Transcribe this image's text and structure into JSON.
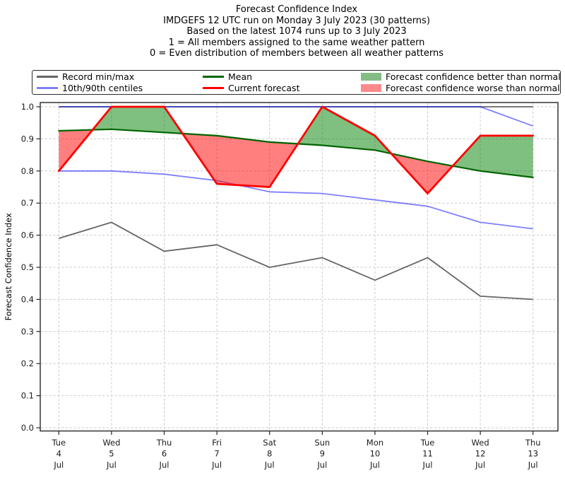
{
  "title_lines": [
    "Forecast Confidence Index",
    "IMDGEFS 12 UTC run on Monday 3 July 2023 (30 patterns)",
    "Based on the latest 1074 runs up to 3 July 2023",
    "1 = All members assigned to the same weather pattern",
    "0 = Even distribution of members between all weather patterns"
  ],
  "legend": {
    "items": [
      {
        "label": "Record min/max",
        "kind": "line",
        "color": "#666666"
      },
      {
        "label": "10th/90th centiles",
        "kind": "line",
        "color": "#8080fa"
      },
      {
        "label": "Mean",
        "kind": "line",
        "color": "#006400"
      },
      {
        "label": "Current forecast",
        "kind": "line",
        "color": "#ff0000"
      },
      {
        "label": "Forecast confidence better than normal",
        "kind": "patch",
        "color": "#83bd83"
      },
      {
        "label": "Forecast confidence worse than normal",
        "kind": "patch",
        "color": "#fb8a8a"
      }
    ]
  },
  "chart_data": {
    "type": "line",
    "title": "Forecast Confidence Index",
    "ylabel": "Forecast Confidence Index",
    "ylim": [
      0.0,
      1.0
    ],
    "yticks": [
      0.0,
      0.1,
      0.2,
      0.3,
      0.4,
      0.5,
      0.6,
      0.7,
      0.8,
      0.9,
      1.0
    ],
    "grid": true,
    "legend_position": "top",
    "x_tick_labels": [
      [
        "Tue",
        "4",
        "Jul"
      ],
      [
        "Wed",
        "5",
        "Jul"
      ],
      [
        "Thu",
        "6",
        "Jul"
      ],
      [
        "Fri",
        "7",
        "Jul"
      ],
      [
        "Sat",
        "8",
        "Jul"
      ],
      [
        "Sun",
        "9",
        "Jul"
      ],
      [
        "Mon",
        "10",
        "Jul"
      ],
      [
        "Tue",
        "11",
        "Jul"
      ],
      [
        "Wed",
        "12",
        "Jul"
      ],
      [
        "Thu",
        "13",
        "Jul"
      ]
    ],
    "series": [
      {
        "key": "record_max",
        "name": "Record max",
        "color": "#666666",
        "width": 1.8,
        "opacity": 1,
        "values": [
          1.0,
          1.0,
          1.0,
          1.0,
          1.0,
          1.0,
          1.0,
          1.0,
          1.0,
          1.0
        ]
      },
      {
        "key": "record_min",
        "name": "Record min",
        "color": "#666666",
        "width": 1.8,
        "opacity": 1,
        "values": [
          0.59,
          0.64,
          0.55,
          0.57,
          0.5,
          0.53,
          0.46,
          0.53,
          0.41,
          0.4
        ]
      },
      {
        "key": "p90",
        "name": "90th centile",
        "color": "#0000ff",
        "width": 1.8,
        "opacity": 0.5,
        "values": [
          1.0,
          1.0,
          1.0,
          1.0,
          1.0,
          1.0,
          1.0,
          1.0,
          1.0,
          0.94
        ]
      },
      {
        "key": "p10",
        "name": "10th centile",
        "color": "#0000ff",
        "width": 1.8,
        "opacity": 0.5,
        "values": [
          0.8,
          0.8,
          0.79,
          0.77,
          0.735,
          0.73,
          0.71,
          0.69,
          0.64,
          0.62
        ]
      },
      {
        "key": "mean",
        "name": "Mean",
        "color": "#006400",
        "width": 2.2,
        "opacity": 1,
        "values": [
          0.925,
          0.93,
          0.92,
          0.91,
          0.89,
          0.88,
          0.865,
          0.83,
          0.8,
          0.78
        ]
      },
      {
        "key": "current",
        "name": "Current forecast",
        "color": "#ff0000",
        "width": 2.8,
        "opacity": 1,
        "values": [
          0.8,
          1.0,
          1.0,
          0.76,
          0.75,
          1.0,
          0.91,
          0.73,
          0.91,
          0.91
        ]
      }
    ],
    "fills": [
      {
        "name": "Forecast confidence better than normal",
        "condition": "current > mean",
        "color": "#008000",
        "opacity": 0.5
      },
      {
        "name": "Forecast confidence worse than normal",
        "condition": "current < mean",
        "color": "#ff0000",
        "opacity": 0.5
      }
    ]
  }
}
